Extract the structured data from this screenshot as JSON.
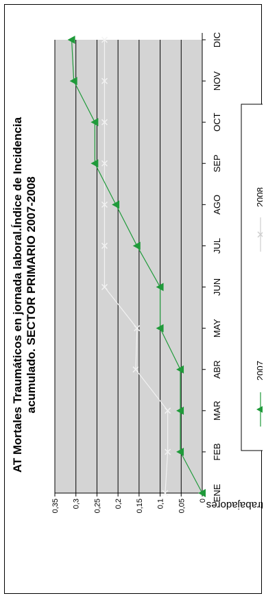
{
  "chart_data": {
    "type": "line",
    "title_line1": "AT Mortales Traumáticos en jornada laboral.Índice de Incidencia",
    "title_line2": "acumulado. SECTOR PRIMARIO 2007-2008",
    "xlabel": "",
    "ylabel": "por mil trabajadores",
    "categories": [
      "ENE",
      "FEB",
      "MAR",
      "ABR",
      "MAY",
      "JUN",
      "JUL",
      "AGO",
      "SEP",
      "OCT",
      "NOV",
      "DIC"
    ],
    "yticks": [
      "0",
      "0,05",
      "0,1",
      "0,15",
      "0,2",
      "0,25",
      "0,3",
      "0,35"
    ],
    "ylim": [
      0,
      0.35
    ],
    "grid": "horizontal",
    "plot_background": "#d4d4d4",
    "legend_position": "bottom",
    "series": [
      {
        "name": "2007",
        "color": "#1f9a3a",
        "marker": "triangle",
        "values": [
          0,
          0.052,
          0.052,
          0.052,
          0.1,
          0.1,
          0.155,
          0.205,
          0.255,
          0.255,
          0.305,
          0.31
        ]
      },
      {
        "name": "2008",
        "color": "#f2f2f2",
        "marker": "x",
        "values": [
          0.088,
          0.082,
          0.082,
          0.158,
          0.155,
          0.232,
          0.232,
          0.232,
          0.232,
          0.232,
          0.232,
          0.232
        ]
      }
    ]
  }
}
